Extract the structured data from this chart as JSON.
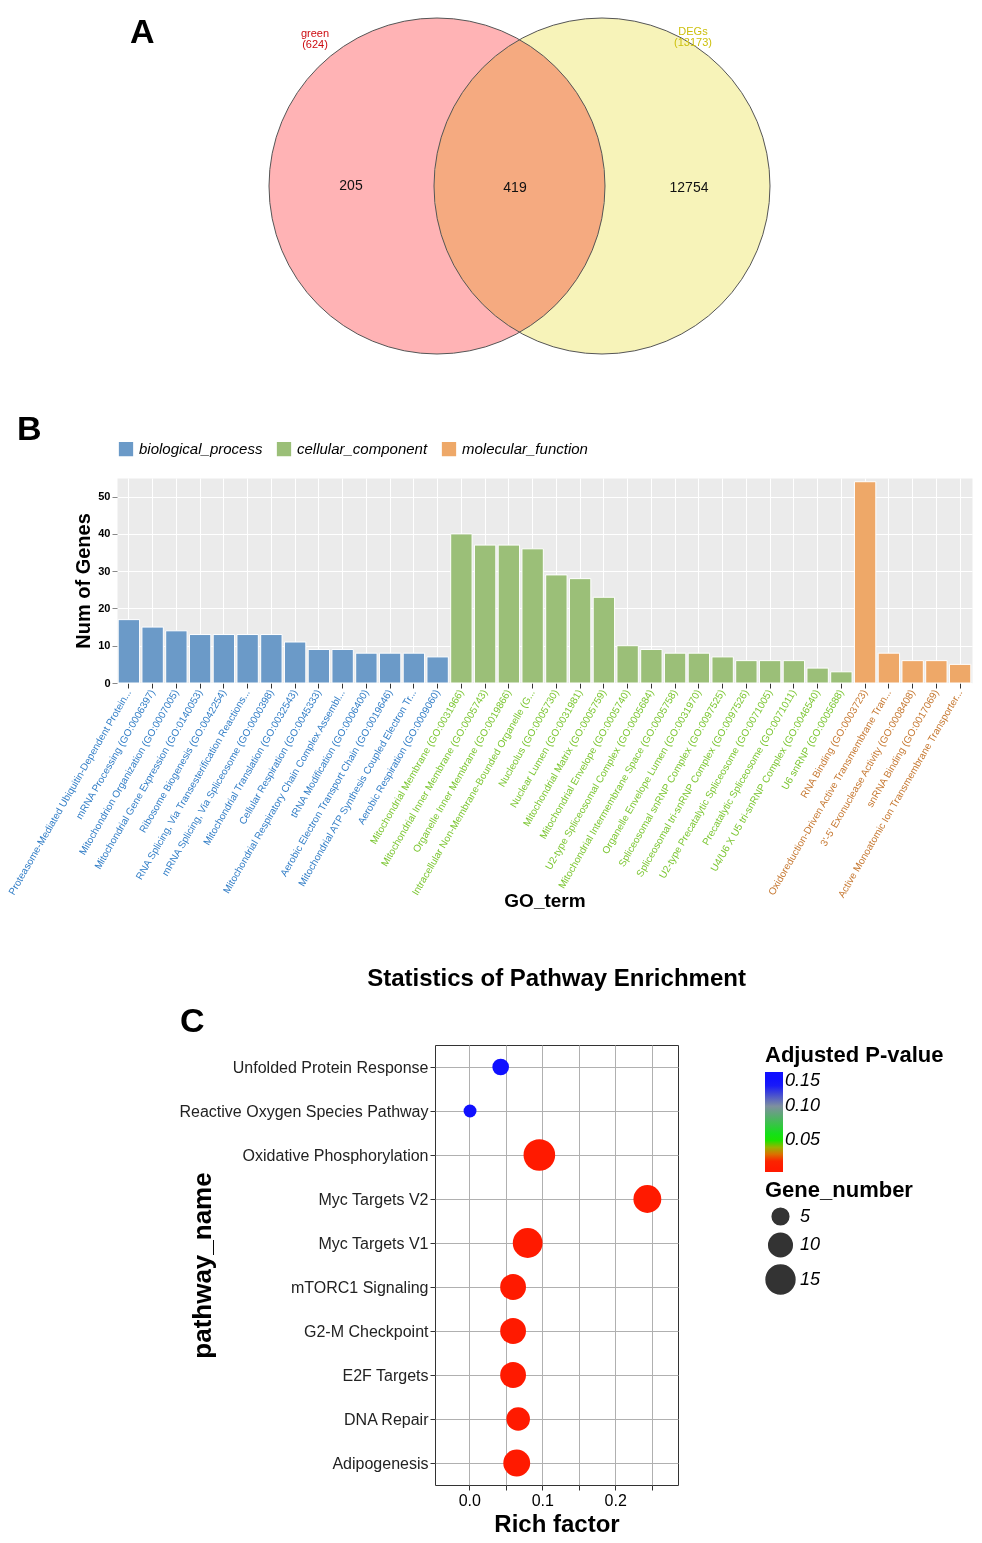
{
  "chart_data": [
    {
      "type": "other",
      "annotations": [
        "A",
        "green (624)",
        "DEGs (13173)"
      ],
      "categories": [
        null,
        null,
        null
      ],
      "values": [
        205,
        419,
        12754
      ],
      "data_labels": true,
      "colors": [
        "#ffb3b5",
        "#f5aa80",
        "#f7f3b9"
      ]
    },
    {
      "type": "bar",
      "annotations": [
        "B"
      ],
      "xlabel": "GO_term",
      "ylabel": "Num of Genes",
      "ylim": [
        0,
        55
      ],
      "yticks": [
        0,
        10,
        20,
        30,
        40,
        50
      ],
      "grid": true,
      "legend": "top",
      "categories": [
        "Proteasome-Mediated Ubiquitin-Dependent Protein...",
        "mRNA Processing (GO:0006397)",
        "Mitochondrion Organization (GO:0007005)",
        "Mitochondrial Gene Expression (GO:0140053)",
        "Ribosome Biogenesis (GO:0042254)",
        "RNA Splicing, Via Transesterification Reactions...",
        "mRNA Splicing, Via Spliceosome (GO:0000398)",
        "Mitochondrial Translation (GO:0032543)",
        "Cellular Respiration (GO:0045333)",
        "Mitochondrial Respiratory Chain Complex Assembl...",
        "tRNA Modification (GO:0006400)",
        "Aerobic Electron Transport Chain (GO:0019646)",
        "Mitochondrial ATP Synthesis Coupled Electron Tr...",
        "Aerobic Respiration (GO:0009060)",
        "Mitochondrial Membrane (GO:0031966)",
        "Mitochondrial Inner Membrane (GO:0005743)",
        "Organelle Inner Membrane (GO:0019866)",
        "Intracellular Non-Membrane-Bounded Organelle (G...",
        "Nucleolus (GO:0005730)",
        "Nuclear Lumen (GO:0031981)",
        "Mitochondrial Matrix (GO:0005759)",
        "Mitochondrial Envelope (GO:0005740)",
        "U2-type Spliceosomal Complex (GO:0005684)",
        "Mitochondrial Intermembrane Space (GO:0005758)",
        "Organelle Envelope Lumen (GO:0031970)",
        "Spliceosomal snRNP Complex (GO:0097525)",
        "Spliceosomal tri-snRNP Complex (GO:0097526)",
        "U2-type Precatalytic Spliceosome (GO:0071005)",
        "Precatalytic Spliceosome (GO:0071011)",
        "U4/U6 X U5 tri-snRNP Complex (GO:0046540)",
        "U6 snRNP (GO:0005688)",
        "RNA Binding (GO:0003723)",
        "Oxidoreduction-Driven Active Transmembrane Tran...",
        "3'-5' Exonuclease Activity (GO:0008408)",
        "snRNA Binding (GO:0017069)",
        "Active Monoatomic Ion Transmembrane Transporter..."
      ],
      "series": [
        {
          "name": "biological_process",
          "color": "#6b9ac8",
          "values": [
            17,
            15,
            14,
            13,
            13,
            13,
            13,
            11,
            9,
            9,
            8,
            8,
            8,
            7,
            null,
            null,
            null,
            null,
            null,
            null,
            null,
            null,
            null,
            null,
            null,
            null,
            null,
            null,
            null,
            null,
            null,
            null,
            null,
            null,
            null,
            null
          ]
        },
        {
          "name": "cellular_component",
          "color": "#9bbf78",
          "values": [
            null,
            null,
            null,
            null,
            null,
            null,
            null,
            null,
            null,
            null,
            null,
            null,
            null,
            null,
            40,
            37,
            37,
            36,
            29,
            28,
            23,
            10,
            9,
            8,
            8,
            7,
            6,
            6,
            6,
            4,
            3,
            null,
            null,
            null,
            null,
            null
          ]
        },
        {
          "name": "molecular_function",
          "color": "#eea868",
          "values": [
            null,
            null,
            null,
            null,
            null,
            null,
            null,
            null,
            null,
            null,
            null,
            null,
            null,
            null,
            null,
            null,
            null,
            null,
            null,
            null,
            null,
            null,
            null,
            null,
            null,
            null,
            null,
            null,
            null,
            null,
            null,
            54,
            8,
            6,
            6,
            5
          ]
        }
      ]
    },
    {
      "type": "bubble",
      "orientation": "horizontal",
      "annotations": [
        "C"
      ],
      "title": "Statistics of Pathway Enrichment",
      "xlabel": "Rich factor",
      "ylabel": "pathway_name",
      "legend_title": "Gene_number",
      "clabel": "Adjusted P-value",
      "grid": true,
      "xlim": [
        -0.047,
        0.286
      ],
      "xticks": [
        {
          "value": 0,
          "label": "0.0"
        },
        {
          "value": 0.05,
          "label": null
        },
        {
          "value": 0.1,
          "label": "0.1"
        },
        {
          "value": 0.15,
          "label": null
        },
        {
          "value": 0.2,
          "label": "0.2"
        },
        {
          "value": 0.25,
          "label": null
        }
      ],
      "categories": [
        "Unfolded Protein Response",
        "Reactive Oxygen Species Pathway",
        "Oxidative Phosphorylation",
        "Myc Targets V2",
        "Myc Targets V1",
        "mTORC1 Signaling",
        "G2-M Checkpoint",
        "E2F Targets",
        "DNA Repair",
        "Adipogenesis"
      ],
      "values": [
        0.043,
        0.001,
        0.096,
        0.244,
        0.08,
        0.06,
        0.06,
        0.06,
        0.067,
        0.065
      ],
      "sizes": [
        5,
        3,
        18,
        14,
        16,
        12,
        12,
        12,
        10,
        13
      ],
      "size_legend": [
        5,
        10,
        15
      ],
      "cvalues": [
        0.14,
        0.15,
        0.005,
        0.005,
        0.005,
        0.005,
        0.005,
        0.005,
        0.005,
        0.005
      ],
      "clim": [
        0.004,
        0.15
      ],
      "cticks": [
        {
          "value": 0.05,
          "label": "0.05"
        },
        {
          "value": 0.1,
          "label": "0.10"
        },
        {
          "value": 0.15,
          "label": "0.15"
        }
      ]
    }
  ]
}
